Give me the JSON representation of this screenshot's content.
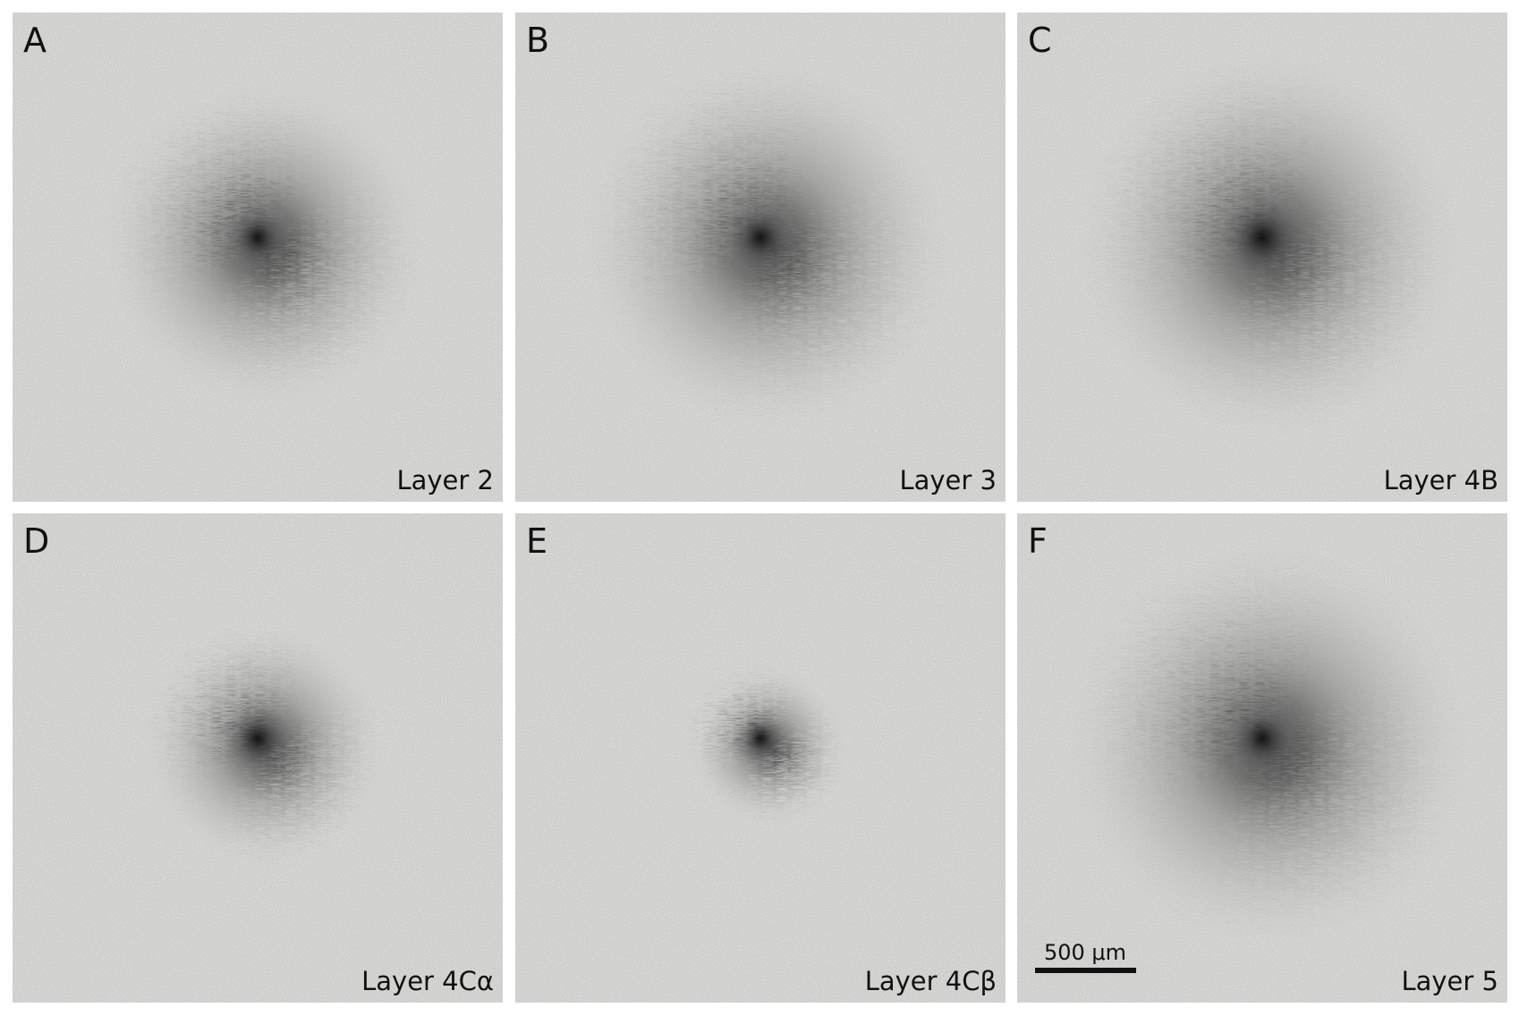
{
  "panels": [
    {
      "letter": "A",
      "label": "Layer 2"
    },
    {
      "letter": "B",
      "label": "Layer 3"
    },
    {
      "letter": "C",
      "label": "Layer 4B"
    },
    {
      "letter": "D",
      "label": "Layer 4Cα"
    },
    {
      "letter": "E",
      "label": "Layer 4Cβ"
    },
    {
      "letter": "F",
      "label": "Layer 5"
    }
  ],
  "scale_bar": {
    "label": "500 μm"
  }
}
